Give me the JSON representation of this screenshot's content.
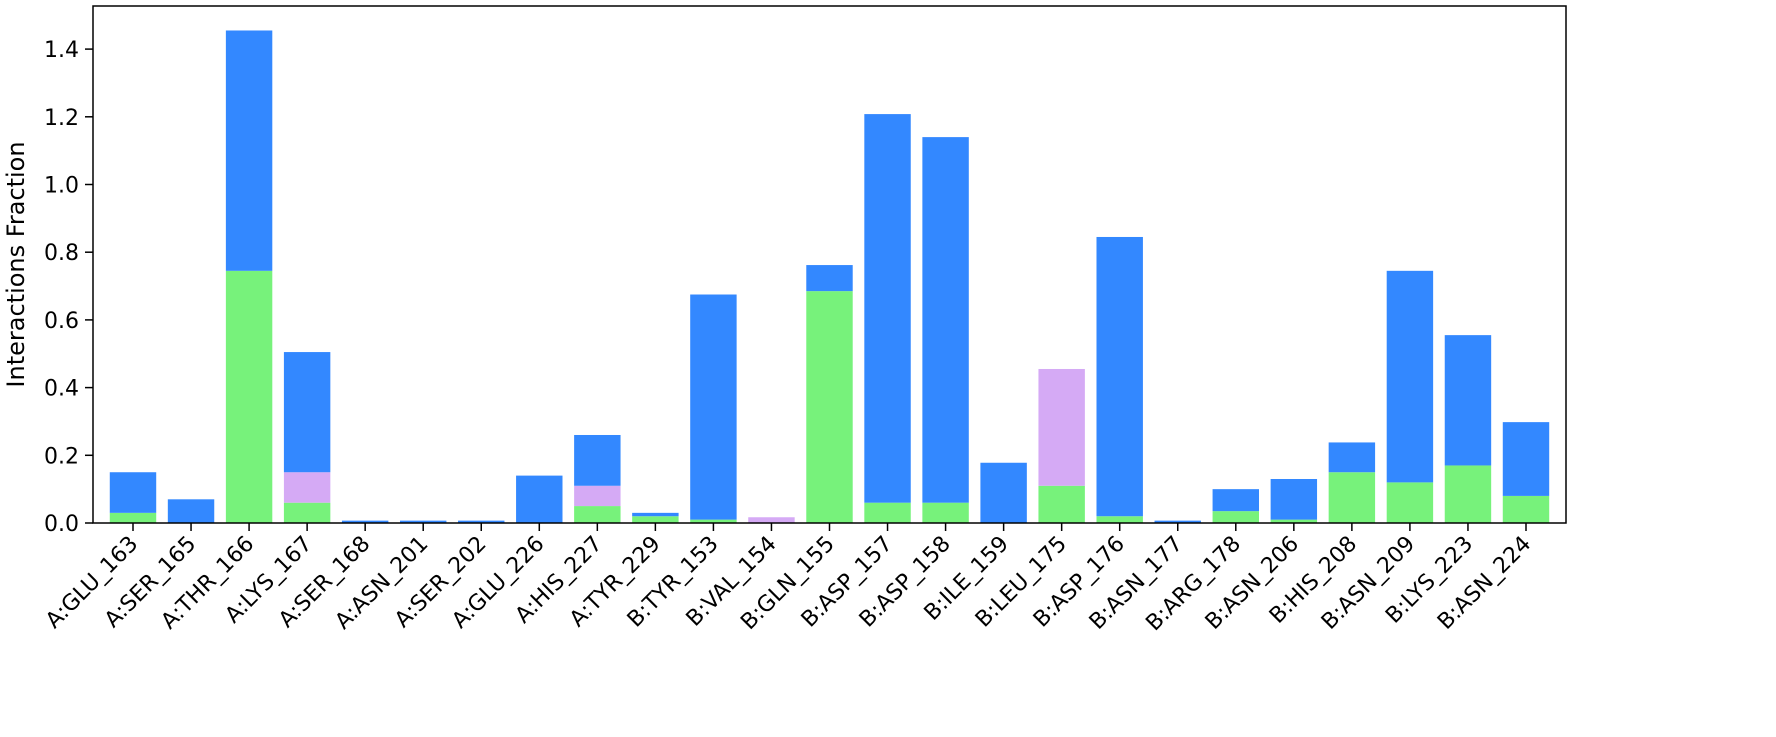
{
  "chart_data": {
    "type": "bar",
    "stacked": true,
    "title": "",
    "xlabel": "",
    "ylabel": "Interactions Fraction",
    "ylim": [
      0,
      1.5
    ],
    "yticks": [
      "0.0",
      "0.2",
      "0.4",
      "0.6",
      "0.8",
      "1.0",
      "1.2",
      "1.4"
    ],
    "grid": false,
    "legend": "none",
    "categories": [
      "A:GLU_163",
      "A:SER_165",
      "A:THR_166",
      "A:LYS_167",
      "A:SER_168",
      "A:ASN_201",
      "A:SER_202",
      "A:GLU_226",
      "A:HIS_227",
      "A:TYR_229",
      "B:TYR_153",
      "B:VAL_154",
      "B:GLN_155",
      "B:ASP_157",
      "B:ASP_158",
      "B:ILE_159",
      "B:LEU_175",
      "B:ASP_176",
      "B:ASN_177",
      "B:ARG_178",
      "B:ASN_206",
      "B:HIS_208",
      "B:ASN_209",
      "B:LYS_223",
      "B:ASN_224"
    ],
    "series": [
      {
        "color": "#77f27b",
        "values": [
          0.03,
          0.0,
          0.745,
          0.06,
          0.0,
          0.0,
          0.0,
          0.0,
          0.05,
          0.02,
          0.01,
          0.0,
          0.685,
          0.06,
          0.06,
          0.0,
          0.11,
          0.02,
          0.0,
          0.035,
          0.01,
          0.15,
          0.12,
          0.17,
          0.08
        ]
      },
      {
        "color": "#d5aaf5",
        "values": [
          0.0,
          0.0,
          0.0,
          0.09,
          0.0,
          0.0,
          0.0,
          0.0,
          0.06,
          0.0,
          0.0,
          0.017,
          0.0,
          0.0,
          0.0,
          0.0,
          0.345,
          0.0,
          0.0,
          0.0,
          0.0,
          0.0,
          0.0,
          0.0,
          0.0
        ]
      },
      {
        "color": "#3388ff",
        "values": [
          0.12,
          0.07,
          0.71,
          0.355,
          0.007,
          0.007,
          0.007,
          0.14,
          0.15,
          0.01,
          0.665,
          0.0,
          0.077,
          1.148,
          1.08,
          0.178,
          0.0,
          0.825,
          0.007,
          0.065,
          0.12,
          0.088,
          0.625,
          0.385,
          0.218
        ]
      }
    ]
  }
}
